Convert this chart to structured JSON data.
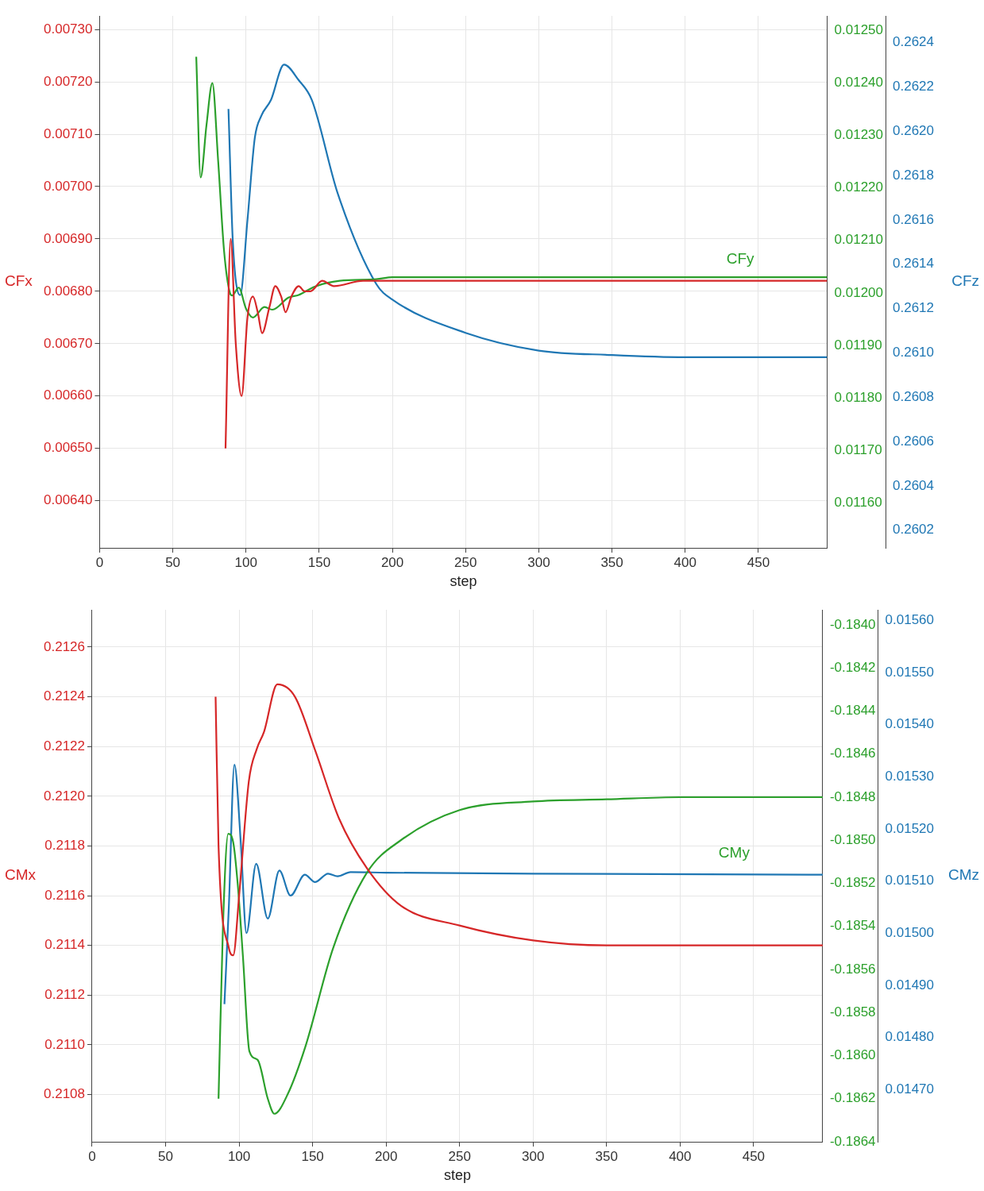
{
  "chart_data": [
    {
      "type": "line",
      "xlabel": "step",
      "ylabel": "CFx",
      "y2label": "CFy",
      "y3label": "CFz",
      "grid": true,
      "legend": false,
      "xlim": [
        0,
        497
      ],
      "xticks": [
        0,
        50,
        100,
        150,
        200,
        250,
        300,
        350,
        400,
        450
      ],
      "ylim": [
        0.00631,
        0.007326
      ],
      "yticks": [
        {
          "value": 0.0064,
          "label": "0.00640"
        },
        {
          "value": 0.0065,
          "label": "0.00650"
        },
        {
          "value": 0.0066,
          "label": "0.00660"
        },
        {
          "value": 0.0067,
          "label": "0.00670"
        },
        {
          "value": 0.0068,
          "label": "0.00680"
        },
        {
          "value": 0.0069,
          "label": "0.00690"
        },
        {
          "value": 0.007,
          "label": "0.00700"
        },
        {
          "value": 0.0071,
          "label": "0.00710"
        },
        {
          "value": 0.0072,
          "label": "0.00720"
        },
        {
          "value": 0.0073,
          "label": "0.00730"
        }
      ],
      "y2lim": [
        0.011514,
        0.012528
      ],
      "y2ticks": [
        {
          "value": 0.0116,
          "label": "0.01160"
        },
        {
          "value": 0.0117,
          "label": "0.01170"
        },
        {
          "value": 0.0118,
          "label": "0.01180"
        },
        {
          "value": 0.0119,
          "label": "0.01190"
        },
        {
          "value": 0.012,
          "label": "0.01200"
        },
        {
          "value": 0.0121,
          "label": "0.01210"
        },
        {
          "value": 0.0122,
          "label": "0.01220"
        },
        {
          "value": 0.0123,
          "label": "0.01230"
        },
        {
          "value": 0.0124,
          "label": "0.01240"
        },
        {
          "value": 0.0125,
          "label": "0.01250"
        }
      ],
      "y3lim": [
        0.26012,
        0.26252
      ],
      "y3ticks": [
        0.2602,
        0.2604,
        0.2606,
        0.2608,
        {
          "value": 0.261,
          "label": "0.2610"
        },
        0.2612,
        0.2614,
        0.2616,
        0.2618,
        {
          "value": 0.262,
          "label": "0.2620"
        },
        0.2622,
        0.2624
      ],
      "series": [
        {
          "color": "#d62728",
          "axis": "y",
          "x": [
            86,
            89.5,
            93,
            97,
            101,
            104.7,
            108,
            111,
            116,
            120,
            124,
            127,
            131,
            136,
            140,
            144,
            152,
            160,
            180,
            200,
            300,
            497
          ],
          "values": [
            0.0065,
            0.0069,
            0.0067,
            0.0066,
            0.00675,
            0.00679,
            0.00676,
            0.00672,
            0.00677,
            0.00681,
            0.00679,
            0.00676,
            0.00679,
            0.00681,
            0.0068,
            0.0068,
            0.00682,
            0.00681,
            0.00682,
            0.00682,
            0.00682,
            0.00682
          ]
        },
        {
          "color": "#2ca02c",
          "axis": "y2",
          "x": [
            66,
            69,
            73,
            77,
            81,
            85,
            89,
            90.5,
            95,
            100,
            104.7,
            112.6,
            118,
            129,
            136,
            147,
            164,
            189,
            200,
            300,
            497
          ],
          "values": [
            0.01245,
            0.01222,
            0.01232,
            0.0124,
            0.01225,
            0.01208,
            0.012,
            0.011995,
            0.01201,
            0.01197,
            0.011953,
            0.011973,
            0.011968,
            0.011991,
            0.011996,
            0.012012,
            0.012023,
            0.012026,
            0.01203,
            0.01203,
            0.01203
          ]
        },
        {
          "color": "#1f77b4",
          "axis": "y3",
          "x": [
            88,
            91,
            96,
            101,
            106,
            110.5,
            117,
            126,
            136,
            145,
            162.6,
            189,
            200,
            250,
            300,
            350,
            400,
            497
          ],
          "values": [
            0.2621,
            0.2615,
            0.26126,
            0.2616,
            0.26197,
            0.26207,
            0.26214,
            0.2623,
            0.26223,
            0.26214,
            0.26172,
            0.26131,
            0.26124,
            0.26109,
            0.26101,
            0.26099,
            0.26098,
            0.26098
          ]
        }
      ]
    },
    {
      "type": "line",
      "xlabel": "step",
      "ylabel": "CMx",
      "y2label": "CMy",
      "y3label": "CMz",
      "grid": true,
      "legend": false,
      "xlim": [
        0,
        497
      ],
      "xticks": [
        0,
        50,
        100,
        150,
        200,
        250,
        300,
        350,
        400,
        450
      ],
      "ylim": [
        0.21061,
        0.21275
      ],
      "yticks": [
        0.2108,
        {
          "value": 0.211,
          "label": "0.2110"
        },
        0.2112,
        0.2114,
        0.2116,
        0.2118,
        {
          "value": 0.212,
          "label": "0.2120"
        },
        0.2122,
        0.2124,
        0.2126
      ],
      "y2lim": [
        -0.1864,
        -0.18393
      ],
      "y2ticks": [
        {
          "value": -0.1864,
          "label": "-0.1864"
        },
        {
          "value": -0.1862,
          "label": "-0.1862"
        },
        {
          "value": -0.186,
          "label": "-0.1860"
        },
        {
          "value": -0.1858,
          "label": "-0.1858"
        },
        {
          "value": -0.1856,
          "label": "-0.1856"
        },
        {
          "value": -0.1854,
          "label": "-0.1854"
        },
        {
          "value": -0.1852,
          "label": "-0.1852"
        },
        {
          "value": -0.185,
          "label": "-0.1850"
        },
        {
          "value": -0.1848,
          "label": "-0.1848"
        },
        {
          "value": -0.1846,
          "label": "-0.1846"
        },
        {
          "value": -0.1844,
          "label": "-0.1844"
        },
        {
          "value": -0.1842,
          "label": "-0.1842"
        },
        {
          "value": -0.184,
          "label": "-0.1840"
        }
      ],
      "y3lim": [
        0.0146,
        0.01562
      ],
      "y3ticks": [
        {
          "value": 0.0147,
          "label": "0.01470"
        },
        {
          "value": 0.0148,
          "label": "0.01480"
        },
        {
          "value": 0.0149,
          "label": "0.01490"
        },
        {
          "value": 0.015,
          "label": "0.01500"
        },
        {
          "value": 0.0151,
          "label": "0.01510"
        },
        {
          "value": 0.0152,
          "label": "0.01520"
        },
        {
          "value": 0.0153,
          "label": "0.01530"
        },
        {
          "value": 0.0154,
          "label": "0.01540"
        },
        {
          "value": 0.0155,
          "label": "0.01550"
        },
        {
          "value": 0.0156,
          "label": "0.01560"
        }
      ],
      "series": [
        {
          "color": "#d62728",
          "axis": "y",
          "x": [
            84,
            86,
            93,
            96,
            100,
            106.6,
            112,
            117,
            126,
            138,
            152,
            168,
            187,
            210,
            250,
            300,
            350,
            400,
            497
          ],
          "values": [
            0.2124,
            0.2118,
            0.21139,
            0.21136,
            0.2116,
            0.21206,
            0.21219,
            0.21226,
            0.21245,
            0.2124,
            0.21218,
            0.21191,
            0.21171,
            0.21156,
            0.21148,
            0.21142,
            0.2114,
            0.2114,
            0.2114
          ]
        },
        {
          "color": "#2ca02c",
          "axis": "y2",
          "x": [
            86,
            89,
            92.6,
            96,
            99,
            102.6,
            107,
            112.6,
            119.5,
            124,
            133,
            145,
            164,
            187,
            210,
            250,
            300,
            350,
            400,
            497
          ],
          "values": [
            -0.1862,
            -0.1854,
            -0.18497,
            -0.18501,
            -0.1852,
            -0.18554,
            -0.18598,
            -0.18602,
            -0.1862,
            -0.18627,
            -0.18618,
            -0.18596,
            -0.1855,
            -0.18515,
            -0.185,
            -0.18486,
            -0.18482,
            -0.18481,
            -0.1848,
            -0.1848
          ]
        },
        {
          "color": "#1f77b4",
          "axis": "y3",
          "x": [
            90,
            93,
            96.8,
            101,
            105,
            111.6,
            119.5,
            127.4,
            135,
            144.7,
            151.6,
            160.5,
            167,
            175.8,
            200,
            300,
            497
          ],
          "values": [
            0.014864,
            0.01505,
            0.015323,
            0.01518,
            0.015,
            0.015133,
            0.015028,
            0.01512,
            0.015072,
            0.015112,
            0.015098,
            0.015114,
            0.015109,
            0.015117,
            0.015116,
            0.015114,
            0.015112
          ]
        }
      ]
    }
  ]
}
